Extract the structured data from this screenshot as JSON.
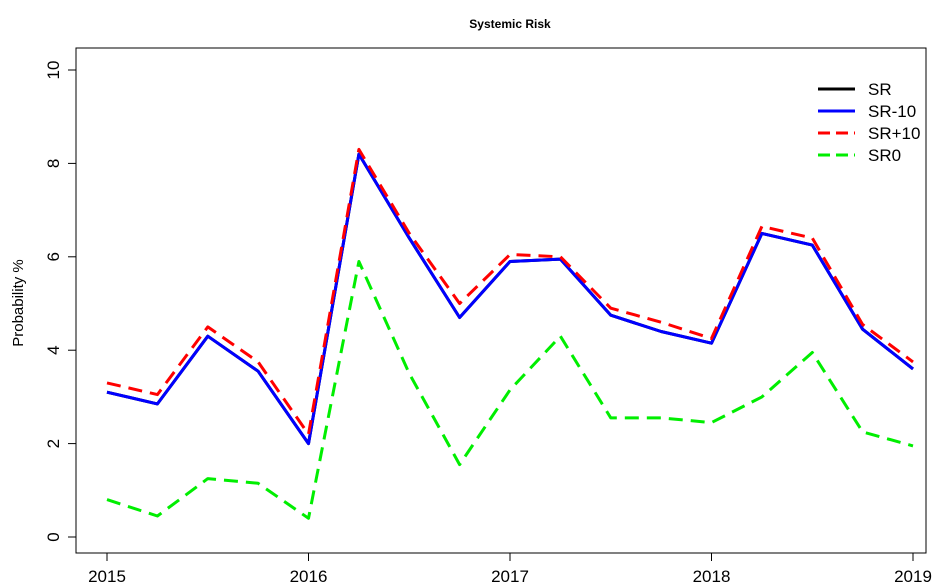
{
  "chart_data": {
    "type": "line",
    "title": "Systemic  Risk",
    "xlabel": "",
    "ylabel": "Probability %",
    "x": [
      2015.0,
      2015.25,
      2015.5,
      2015.75,
      2016.0,
      2016.25,
      2016.5,
      2016.75,
      2017.0,
      2017.25,
      2017.5,
      2017.75,
      2018.0,
      2018.25,
      2018.5,
      2018.75,
      2019.0
    ],
    "xlim": [
      2015,
      2019
    ],
    "ylim": [
      0,
      10
    ],
    "x_ticks": [
      "2015",
      "2016",
      "2017",
      "2018",
      "2019"
    ],
    "y_ticks": [
      "0",
      "2",
      "4",
      "6",
      "8",
      "10"
    ],
    "grid": false,
    "legend_position": "top-right",
    "series": [
      {
        "name": "SR",
        "color": "#000000",
        "dash": "solid",
        "values": [
          3.1,
          2.85,
          4.3,
          3.55,
          2.0,
          8.2,
          6.4,
          4.7,
          5.9,
          5.95,
          4.75,
          4.4,
          4.15,
          6.5,
          6.25,
          4.45,
          3.6
        ]
      },
      {
        "name": "SR-10",
        "color": "#0000ff",
        "dash": "solid",
        "values": [
          3.1,
          2.85,
          4.3,
          3.55,
          2.0,
          8.2,
          6.4,
          4.7,
          5.9,
          5.95,
          4.75,
          4.4,
          4.15,
          6.5,
          6.25,
          4.45,
          3.6
        ]
      },
      {
        "name": "SR+10",
        "color": "#ff0000",
        "dash": "dashed",
        "values": [
          3.3,
          3.05,
          4.5,
          3.75,
          2.2,
          8.3,
          6.5,
          5.0,
          6.05,
          6.0,
          4.9,
          4.6,
          4.25,
          6.65,
          6.4,
          4.55,
          3.75
        ]
      },
      {
        "name": "SR0",
        "color": "#00ee00",
        "dash": "dashed",
        "values": [
          0.8,
          0.45,
          1.25,
          1.15,
          0.4,
          5.9,
          3.5,
          1.55,
          3.15,
          4.3,
          2.55,
          2.55,
          2.45,
          3.0,
          3.95,
          2.25,
          1.95
        ]
      }
    ]
  }
}
